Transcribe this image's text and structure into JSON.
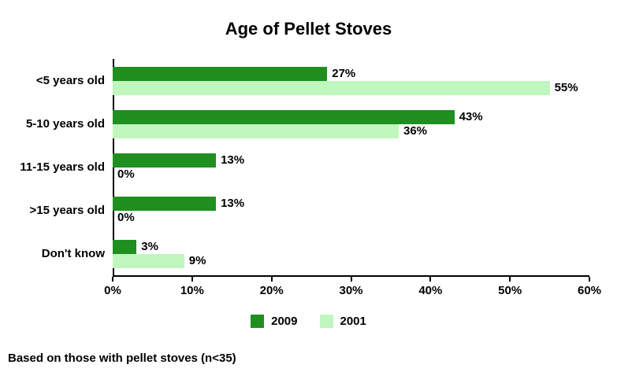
{
  "footnote": "Based on those with pellet stoves (n<35)",
  "chart_data": {
    "type": "bar",
    "orientation": "horizontal",
    "title": "Age of Pellet Stoves",
    "categories": [
      "<5 years old",
      "5-10 years old",
      "11-15 years old",
      ">15 years old",
      "Don't know"
    ],
    "series": [
      {
        "name": "2009",
        "color": "#1f8f1f",
        "values": [
          27,
          43,
          13,
          13,
          3
        ]
      },
      {
        "name": "2001",
        "color": "#bff7bf",
        "values": [
          55,
          36,
          0,
          0,
          9
        ]
      }
    ],
    "value_label_format": "percent",
    "xlabel": "",
    "ylabel": "",
    "xlim": [
      0,
      60
    ],
    "x_ticks": [
      "0%",
      "10%",
      "20%",
      "30%",
      "40%",
      "50%",
      "60%"
    ],
    "grid": false,
    "legend_position": "bottom"
  }
}
